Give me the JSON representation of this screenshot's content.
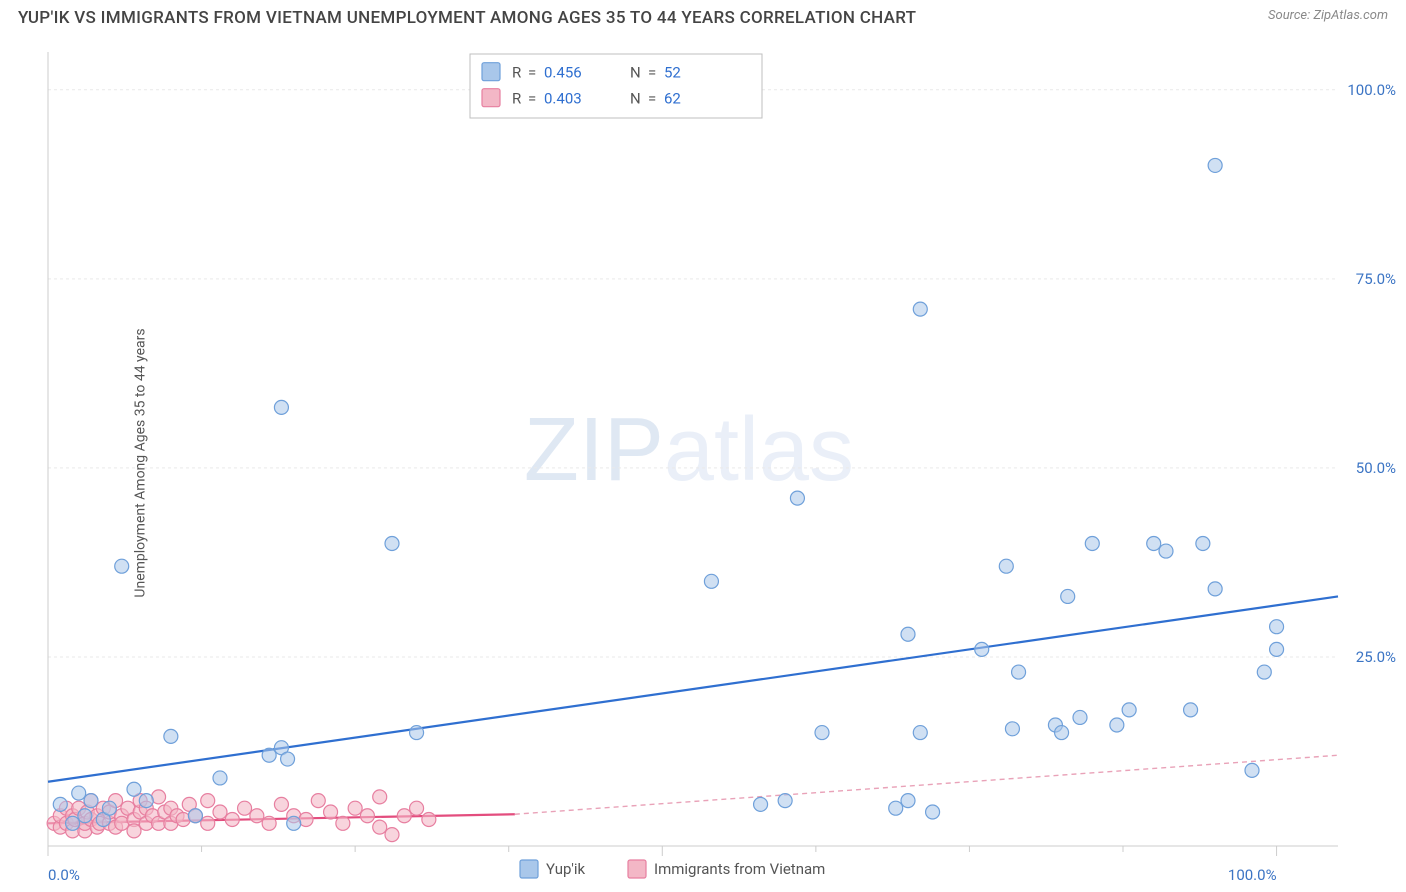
{
  "title": "YUP'IK VS IMMIGRANTS FROM VIETNAM UNEMPLOYMENT AMONG AGES 35 TO 44 YEARS CORRELATION CHART",
  "source_prefix": "Source: ",
  "source_name": "ZipAtlas.com",
  "ylabel": "Unemployment Among Ages 35 to 44 years",
  "watermark_a": "ZIP",
  "watermark_b": "atlas",
  "chart": {
    "type": "scatter",
    "xlim": [
      0,
      105
    ],
    "ylim": [
      0,
      105
    ],
    "x_ticks_major": [
      0,
      50,
      100
    ],
    "x_ticks_minor": [
      12.5,
      25,
      37.5,
      62.5,
      75,
      87.5
    ],
    "y_gridlines": [
      25,
      50,
      75,
      100
    ],
    "x_tick_labels": {
      "0": "0.0%",
      "100": "100.0%"
    },
    "y_tick_labels": {
      "25": "25.0%",
      "50": "50.0%",
      "75": "75.0%",
      "100": "100.0%"
    },
    "background": "#ffffff",
    "grid_color": "#e9e9e9",
    "axis_color": "#cccccc",
    "marker_radius": 7,
    "marker_stroke_width": 1.2,
    "series": [
      {
        "id": "yupik",
        "label": "Yup'ik",
        "fill": "#a9c7ea",
        "fill_opacity": 0.55,
        "stroke": "#6fa0da",
        "R": "0.456",
        "N": "52",
        "trend": {
          "x1": 0,
          "y1": 8.5,
          "x2": 105,
          "y2": 33,
          "color": "#2f6fd0",
          "width": 2.2,
          "dash": "none"
        },
        "points": [
          [
            1,
            5.5
          ],
          [
            2,
            3
          ],
          [
            2.5,
            7
          ],
          [
            3,
            4
          ],
          [
            3.5,
            6
          ],
          [
            4.5,
            3.5
          ],
          [
            5,
            5
          ],
          [
            6,
            37
          ],
          [
            7,
            7.5
          ],
          [
            8,
            6
          ],
          [
            10,
            14.5
          ],
          [
            12,
            4
          ],
          [
            14,
            9
          ],
          [
            18,
            12
          ],
          [
            19,
            13
          ],
          [
            19,
            58
          ],
          [
            19.5,
            11.5
          ],
          [
            20,
            3
          ],
          [
            28,
            40
          ],
          [
            30,
            15
          ],
          [
            54,
            35
          ],
          [
            58,
            5.5
          ],
          [
            60,
            6
          ],
          [
            61,
            46
          ],
          [
            63,
            15
          ],
          [
            69,
            5
          ],
          [
            70,
            6
          ],
          [
            70,
            28
          ],
          [
            71,
            15
          ],
          [
            71,
            71
          ],
          [
            72,
            4.5
          ],
          [
            76,
            26
          ],
          [
            78,
            37
          ],
          [
            78.5,
            15.5
          ],
          [
            79,
            23
          ],
          [
            82,
            16
          ],
          [
            82.5,
            15
          ],
          [
            83,
            33
          ],
          [
            84,
            17
          ],
          [
            85,
            40
          ],
          [
            87,
            16
          ],
          [
            88,
            18
          ],
          [
            90,
            40
          ],
          [
            91,
            39
          ],
          [
            93,
            18
          ],
          [
            94,
            40
          ],
          [
            95,
            34
          ],
          [
            95,
            90
          ],
          [
            98,
            10
          ],
          [
            99,
            23
          ],
          [
            100,
            26
          ],
          [
            100,
            29
          ]
        ]
      },
      {
        "id": "vietnam",
        "label": "Immigrants from Vietnam",
        "fill": "#f3b7c6",
        "fill_opacity": 0.6,
        "stroke": "#e77fa0",
        "R": "0.403",
        "N": "62",
        "trend_solid": {
          "x1": 0,
          "y1": 3,
          "x2": 38,
          "y2": 4.2,
          "color": "#e34d7e",
          "width": 2.2
        },
        "trend_dash": {
          "x1": 38,
          "y1": 4.2,
          "x2": 105,
          "y2": 12,
          "color": "#e9a2b8",
          "width": 1.4,
          "dash": "5 4"
        },
        "points": [
          [
            0.5,
            3
          ],
          [
            1,
            2.5
          ],
          [
            1,
            4
          ],
          [
            1.5,
            3
          ],
          [
            1.5,
            5
          ],
          [
            2,
            2
          ],
          [
            2,
            4
          ],
          [
            2.2,
            3.5
          ],
          [
            2.5,
            5
          ],
          [
            3,
            2
          ],
          [
            3,
            3
          ],
          [
            3.2,
            4.5
          ],
          [
            3.5,
            3.5
          ],
          [
            3.5,
            6
          ],
          [
            4,
            2.5
          ],
          [
            4,
            4
          ],
          [
            4.2,
            3
          ],
          [
            4.5,
            5
          ],
          [
            5,
            3
          ],
          [
            5,
            4.5
          ],
          [
            5.5,
            2.5
          ],
          [
            5.5,
            6
          ],
          [
            6,
            4
          ],
          [
            6,
            3
          ],
          [
            6.5,
            5
          ],
          [
            7,
            3.5
          ],
          [
            7,
            2
          ],
          [
            7.5,
            4.5
          ],
          [
            7.5,
            6
          ],
          [
            8,
            3
          ],
          [
            8,
            5
          ],
          [
            8.5,
            4
          ],
          [
            9,
            3
          ],
          [
            9,
            6.5
          ],
          [
            9.5,
            4.5
          ],
          [
            10,
            3
          ],
          [
            10,
            5
          ],
          [
            10.5,
            4
          ],
          [
            11,
            3.5
          ],
          [
            11.5,
            5.5
          ],
          [
            12,
            4
          ],
          [
            13,
            3
          ],
          [
            13,
            6
          ],
          [
            14,
            4.5
          ],
          [
            15,
            3.5
          ],
          [
            16,
            5
          ],
          [
            17,
            4
          ],
          [
            18,
            3
          ],
          [
            19,
            5.5
          ],
          [
            20,
            4
          ],
          [
            21,
            3.5
          ],
          [
            22,
            6
          ],
          [
            23,
            4.5
          ],
          [
            24,
            3
          ],
          [
            25,
            5
          ],
          [
            26,
            4
          ],
          [
            27,
            2.5
          ],
          [
            27,
            6.5
          ],
          [
            28,
            1.5
          ],
          [
            29,
            4
          ],
          [
            30,
            5
          ],
          [
            31,
            3.5
          ]
        ]
      }
    ],
    "legend_top": {
      "box_stroke": "#bfbfbf",
      "label_color": "#555555",
      "value_color": "#2f6fd0",
      "rows": [
        {
          "swatch_fill": "#a9c7ea",
          "swatch_stroke": "#6fa0da",
          "R": "0.456",
          "N": "52"
        },
        {
          "swatch_fill": "#f3b7c6",
          "swatch_stroke": "#e77fa0",
          "R": "0.403",
          "N": "62"
        }
      ]
    },
    "legend_bottom": [
      {
        "swatch_fill": "#a9c7ea",
        "swatch_stroke": "#6fa0da",
        "label": "Yup'ik"
      },
      {
        "swatch_fill": "#f3b7c6",
        "swatch_stroke": "#e77fa0",
        "label": "Immigrants from Vietnam"
      }
    ]
  }
}
